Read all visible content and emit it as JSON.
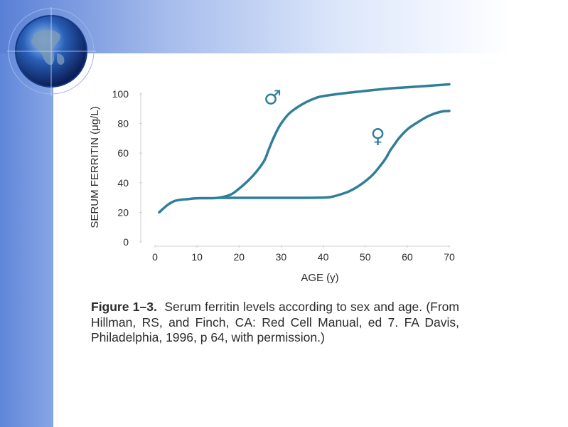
{
  "chart_data": {
    "type": "line",
    "xlabel": "AGE (y)",
    "ylabel": "SERUM FERRITIN (μg/L)",
    "xlim": [
      0,
      70
    ],
    "ylim": [
      0,
      100
    ],
    "xticks": [
      0,
      10,
      20,
      30,
      40,
      50,
      60,
      70
    ],
    "yticks": [
      0,
      20,
      40,
      60,
      80,
      100
    ],
    "grid": false,
    "series": [
      {
        "name": "♂",
        "color": "#2f7f99",
        "x": [
          1,
          3,
          5,
          8,
          10,
          15,
          18,
          20,
          22,
          24,
          26,
          27,
          28,
          29,
          30,
          32,
          35,
          38,
          40,
          45,
          50,
          55,
          60,
          65,
          70
        ],
        "y": [
          20,
          25,
          28,
          29,
          29.5,
          29.8,
          32,
          36,
          41,
          47,
          55,
          62,
          69,
          75,
          80,
          87,
          93,
          97,
          98.5,
          100.5,
          102,
          103.5,
          104.5,
          105.5,
          106.5
        ]
      },
      {
        "name": "♀",
        "color": "#2f7f99",
        "x": [
          15,
          20,
          25,
          30,
          35,
          40,
          42,
          44,
          46,
          48,
          50,
          52,
          54,
          55,
          56,
          57,
          58,
          60,
          62,
          65,
          68,
          70
        ],
        "y": [
          29.8,
          29.8,
          29.8,
          29.8,
          29.8,
          30,
          30.5,
          32,
          34,
          37,
          41,
          46,
          53,
          57,
          62,
          66,
          70,
          76,
          80,
          85,
          88,
          88.5
        ]
      }
    ],
    "annotations": [
      {
        "text": "♂",
        "x": 28,
        "y": 93
      },
      {
        "text": "♀",
        "x": 53,
        "y": 67
      }
    ]
  },
  "caption": {
    "figure_label": "Figure 1–3.",
    "text": "Serum ferritin levels according to sex and age. (From Hillman, RS, and Finch, CA: Red Cell Manual, ed 7. FA Davis, Philadelphia, 1996, p 64, with permission.)"
  }
}
